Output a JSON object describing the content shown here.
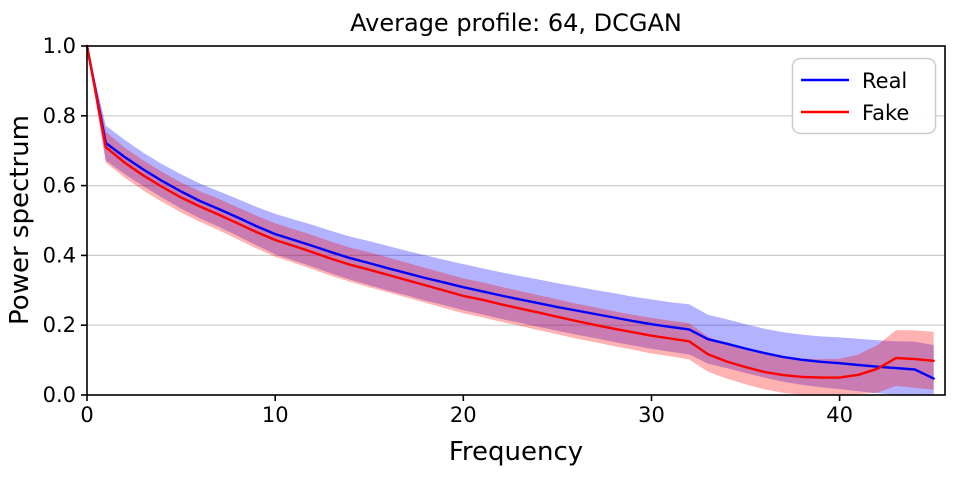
{
  "chart_data": {
    "type": "line",
    "title": "Average profile: 64, DCGAN",
    "xlabel": "Frequency",
    "ylabel": "Power spectrum",
    "xlim": [
      0,
      45.6
    ],
    "ylim": [
      0,
      1.0
    ],
    "xticks": [
      0,
      10,
      20,
      30,
      40
    ],
    "xtick_labels": [
      "0",
      "10",
      "20",
      "30",
      "40"
    ],
    "yticks": [
      0.0,
      0.2,
      0.4,
      0.6,
      0.8,
      1.0
    ],
    "ytick_labels": [
      "0.0",
      "0.2",
      "0.4",
      "0.6",
      "0.8",
      "1.0"
    ],
    "grid": "horizontal",
    "band_opacity": 0.3,
    "legend": {
      "position": "upper right",
      "entries": [
        "Real",
        "Fake"
      ]
    },
    "x": [
      0,
      1,
      2,
      3,
      4,
      5,
      6,
      7,
      8,
      9,
      10,
      11,
      12,
      13,
      14,
      15,
      16,
      17,
      18,
      19,
      20,
      21,
      22,
      23,
      24,
      25,
      26,
      27,
      28,
      29,
      30,
      31,
      32,
      33,
      34,
      35,
      36,
      37,
      38,
      39,
      40,
      41,
      42,
      43,
      44,
      45
    ],
    "series": [
      {
        "name": "Real",
        "color": "#0000ff",
        "mean": [
          1.0,
          0.722,
          0.682,
          0.646,
          0.613,
          0.583,
          0.556,
          0.533,
          0.509,
          0.484,
          0.461,
          0.444,
          0.427,
          0.409,
          0.392,
          0.378,
          0.363,
          0.349,
          0.335,
          0.322,
          0.309,
          0.297,
          0.285,
          0.274,
          0.263,
          0.252,
          0.242,
          0.232,
          0.222,
          0.212,
          0.203,
          0.195,
          0.188,
          0.16,
          0.147,
          0.133,
          0.12,
          0.109,
          0.101,
          0.095,
          0.091,
          0.086,
          0.081,
          0.077,
          0.073,
          0.047
        ],
        "upper": [
          1.0,
          0.772,
          0.731,
          0.694,
          0.661,
          0.632,
          0.606,
          0.584,
          0.562,
          0.539,
          0.519,
          0.503,
          0.487,
          0.47,
          0.454,
          0.441,
          0.427,
          0.413,
          0.4,
          0.387,
          0.375,
          0.363,
          0.352,
          0.341,
          0.331,
          0.32,
          0.311,
          0.301,
          0.292,
          0.282,
          0.274,
          0.266,
          0.26,
          0.23,
          0.217,
          0.203,
          0.19,
          0.18,
          0.173,
          0.168,
          0.165,
          0.161,
          0.157,
          0.154,
          0.153,
          0.143
        ],
        "lower": [
          0.996,
          0.672,
          0.633,
          0.598,
          0.565,
          0.534,
          0.506,
          0.482,
          0.456,
          0.429,
          0.403,
          0.385,
          0.367,
          0.348,
          0.33,
          0.315,
          0.299,
          0.285,
          0.27,
          0.257,
          0.243,
          0.231,
          0.218,
          0.207,
          0.195,
          0.184,
          0.173,
          0.163,
          0.152,
          0.142,
          0.132,
          0.124,
          0.116,
          0.09,
          0.077,
          0.063,
          0.05,
          0.038,
          0.029,
          0.022,
          0.017,
          0.011,
          0.005,
          0.001,
          0.001,
          0.002
        ]
      },
      {
        "name": "Fake",
        "color": "#ff0000",
        "mean": [
          1.0,
          0.71,
          0.666,
          0.629,
          0.596,
          0.566,
          0.54,
          0.517,
          0.492,
          0.467,
          0.444,
          0.427,
          0.409,
          0.39,
          0.373,
          0.359,
          0.344,
          0.329,
          0.314,
          0.299,
          0.284,
          0.273,
          0.26,
          0.248,
          0.236,
          0.224,
          0.212,
          0.201,
          0.19,
          0.18,
          0.17,
          0.162,
          0.154,
          0.117,
          0.096,
          0.08,
          0.066,
          0.057,
          0.052,
          0.05,
          0.05,
          0.058,
          0.075,
          0.106,
          0.103,
          0.098
        ],
        "upper": [
          1.0,
          0.754,
          0.709,
          0.672,
          0.639,
          0.609,
          0.584,
          0.562,
          0.538,
          0.514,
          0.492,
          0.475,
          0.458,
          0.439,
          0.422,
          0.409,
          0.394,
          0.379,
          0.364,
          0.349,
          0.334,
          0.323,
          0.31,
          0.298,
          0.286,
          0.274,
          0.262,
          0.251,
          0.24,
          0.23,
          0.221,
          0.213,
          0.206,
          0.167,
          0.145,
          0.129,
          0.116,
          0.108,
          0.104,
          0.103,
          0.104,
          0.116,
          0.143,
          0.186,
          0.185,
          0.181
        ],
        "lower": [
          0.996,
          0.666,
          0.623,
          0.586,
          0.553,
          0.523,
          0.496,
          0.472,
          0.446,
          0.42,
          0.396,
          0.379,
          0.36,
          0.341,
          0.324,
          0.309,
          0.294,
          0.279,
          0.264,
          0.249,
          0.234,
          0.223,
          0.21,
          0.198,
          0.186,
          0.174,
          0.162,
          0.151,
          0.14,
          0.13,
          0.119,
          0.111,
          0.102,
          0.067,
          0.047,
          0.031,
          0.016,
          0.006,
          0.001,
          0.0,
          0.0,
          0.002,
          0.007,
          0.026,
          0.021,
          0.015
        ]
      }
    ]
  },
  "colors": {
    "background": "#ffffff",
    "grid": "#cccccc",
    "spine": "#000000",
    "legend_border": "#cccccc",
    "text": "#000000"
  }
}
